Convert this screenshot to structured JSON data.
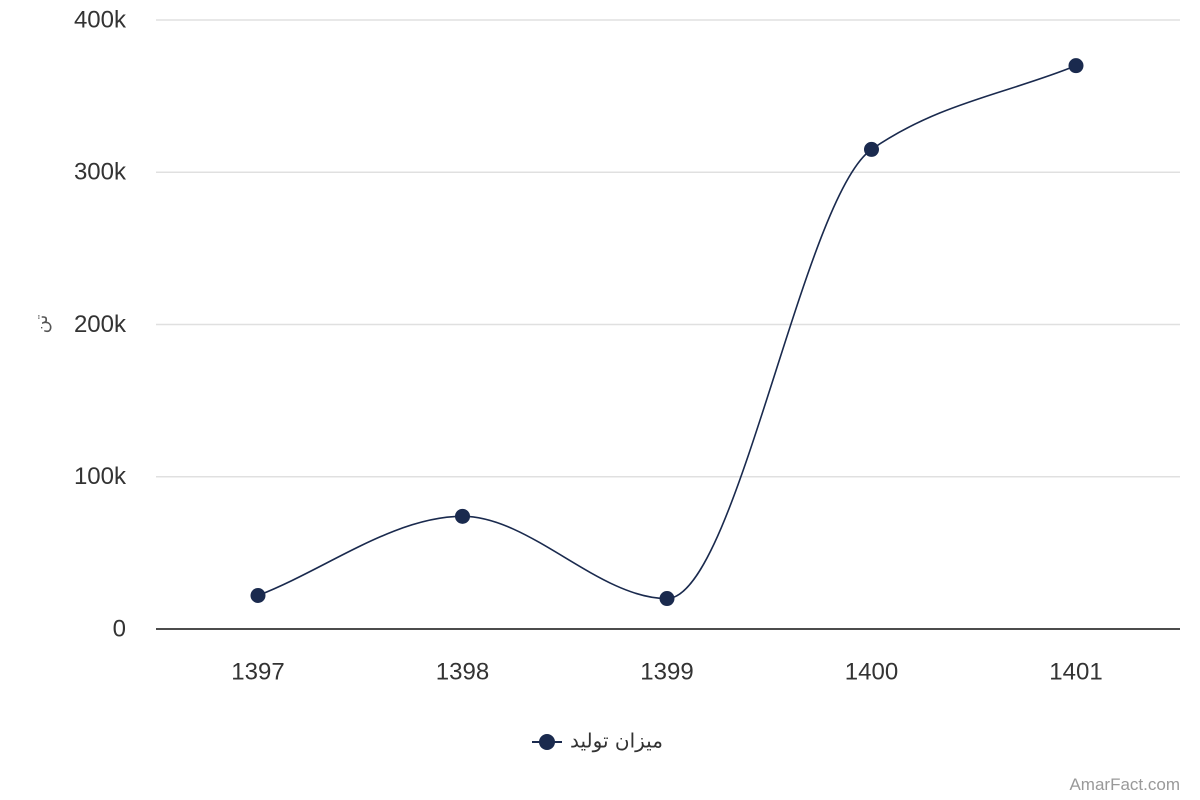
{
  "chart_data": {
    "type": "line",
    "title": "",
    "xlabel": "",
    "ylabel": "تن",
    "categories": [
      "1397",
      "1398",
      "1399",
      "1400",
      "1401"
    ],
    "series": [
      {
        "name": "میزان تولید",
        "values": [
          22000,
          74000,
          20000,
          315000,
          370000
        ]
      }
    ],
    "ylim": [
      0,
      400000
    ],
    "yticks": [
      {
        "value": 0,
        "label": "0"
      },
      {
        "value": 100000,
        "label": "100k"
      },
      {
        "value": 200000,
        "label": "200k"
      },
      {
        "value": 300000,
        "label": "300k"
      },
      {
        "value": 400000,
        "label": "400k"
      }
    ],
    "grid": true,
    "legend_position": "bottom-center",
    "smooth": true,
    "colors": {
      "series": "#1a2a4e",
      "grid": "#e0e0e0",
      "axis": "#333333"
    }
  },
  "credit": "AmarFact.com"
}
